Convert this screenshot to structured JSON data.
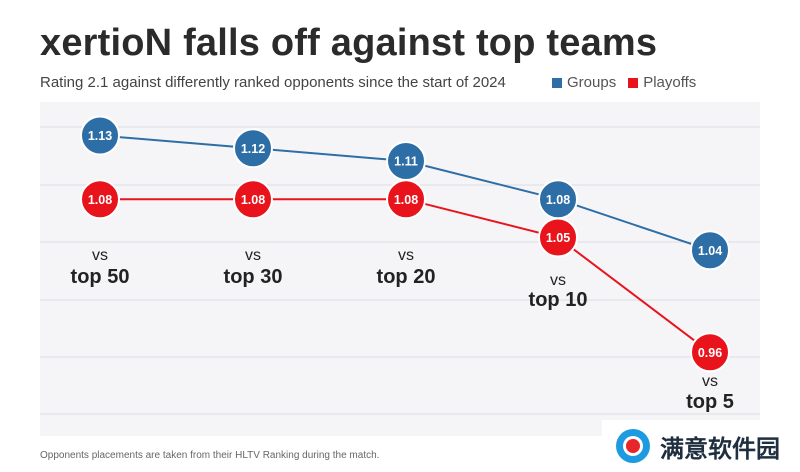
{
  "header": {
    "title": "xertioN falls off against top teams",
    "subtitle": "Rating 2.1 against differently ranked opponents since the start of 2024"
  },
  "legend": [
    {
      "label": "Groups",
      "color": "#2e6ea6"
    },
    {
      "label": "Playoffs",
      "color": "#e8131b"
    }
  ],
  "footnote": "Opponents placements are taken from their HLTV Ranking  during the match.",
  "watermark": {
    "text": "满意软件园"
  },
  "chart_data": {
    "type": "line",
    "categories": [
      {
        "vs": "vs",
        "label": "top 50"
      },
      {
        "vs": "vs",
        "label": "top 30"
      },
      {
        "vs": "vs",
        "label": "top 20"
      },
      {
        "vs": "vs",
        "label": "top 10"
      },
      {
        "vs": "vs",
        "label": "top 5"
      }
    ],
    "series": [
      {
        "name": "Groups",
        "color": "#2e6ea6",
        "values": [
          1.13,
          1.12,
          1.11,
          1.08,
          1.04
        ],
        "labels": [
          "1.13",
          "1.12",
          "1.11",
          "1.08",
          "1.04"
        ]
      },
      {
        "name": "Playoffs",
        "color": "#e8131b",
        "values": [
          1.08,
          1.08,
          1.08,
          1.05,
          0.96
        ],
        "labels": [
          "1.08",
          "1.08",
          "1.08",
          "1.05",
          "0.96"
        ]
      }
    ],
    "grid": true
  }
}
